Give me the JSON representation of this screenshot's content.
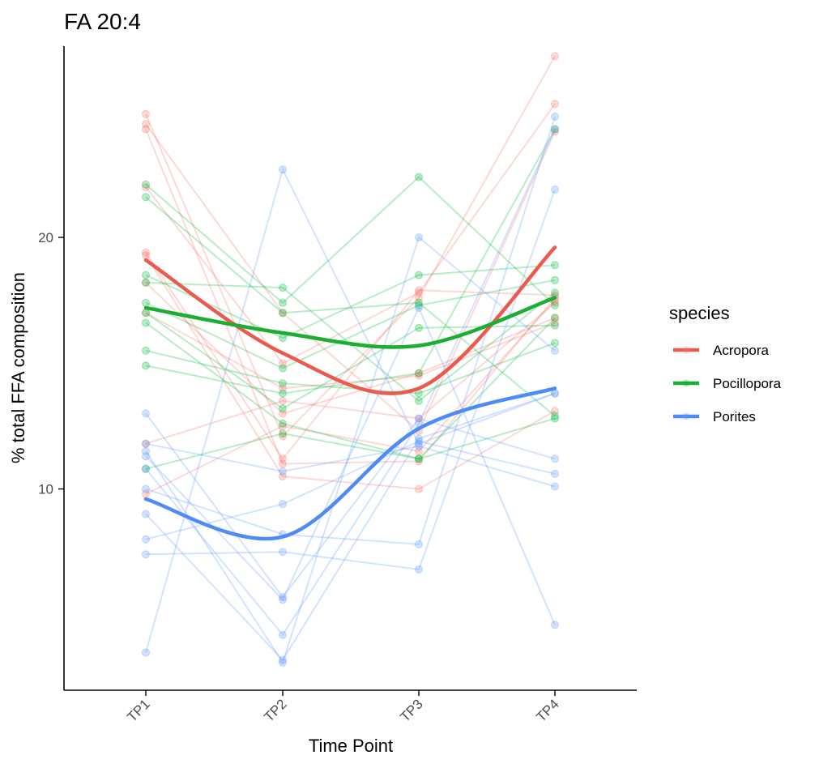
{
  "chart_data": {
    "type": "line",
    "title": "FA 20:4",
    "xlabel": "Time Point",
    "ylabel": "% total FFA composition",
    "categories": [
      "TP1",
      "TP2",
      "TP3",
      "TP4"
    ],
    "yticks": [
      10,
      20
    ],
    "ylim": [
      2.0,
      27.6
    ],
    "grid": false,
    "legend": {
      "title": "species",
      "position": "right",
      "entries": [
        "Acropora",
        "Pocillopora",
        "Porites"
      ]
    },
    "colors": {
      "Acropora": "#F8766D",
      "Pocillopora": "#00BA38",
      "Porites": "#619CFF",
      "Acropora_smooth": "#EB5A4E",
      "Pocillopora_smooth": "#1BAE33",
      "Porites_smooth": "#4F8BF7"
    },
    "individuals": [
      {
        "species": "Acropora",
        "values": [
          24.9,
          12.1,
          17.6,
          27.2
        ]
      },
      {
        "species": "Acropora",
        "values": [
          24.5,
          17.0,
          12.3,
          24.2
        ]
      },
      {
        "species": "Acropora",
        "values": [
          24.3,
          11.0,
          11.1,
          17.6
        ]
      },
      {
        "species": "Acropora",
        "values": [
          22.0,
          15.0,
          17.8,
          25.3
        ]
      },
      {
        "species": "Acropora",
        "values": [
          19.4,
          11.2,
          17.9,
          17.7
        ]
      },
      {
        "species": "Acropora",
        "values": [
          19.3,
          10.5,
          10.0,
          13.1
        ]
      },
      {
        "species": "Acropora",
        "values": [
          18.2,
          13.0,
          14.6,
          16.8
        ]
      },
      {
        "species": "Acropora",
        "values": [
          17.0,
          14.0,
          14.5,
          16.6
        ]
      },
      {
        "species": "Acropora",
        "values": [
          11.8,
          13.5,
          12.8,
          17.4
        ]
      },
      {
        "species": "Acropora",
        "values": [
          9.8,
          12.5,
          11.5,
          17.5
        ]
      },
      {
        "species": "Pocillopora",
        "values": [
          22.1,
          17.4,
          22.4,
          17.3
        ]
      },
      {
        "species": "Pocillopora",
        "values": [
          21.6,
          17.0,
          17.4,
          12.9
        ]
      },
      {
        "species": "Pocillopora",
        "values": [
          18.5,
          16.0,
          18.5,
          18.9
        ]
      },
      {
        "species": "Pocillopora",
        "values": [
          18.2,
          18.0,
          13.5,
          17.8
        ]
      },
      {
        "species": "Pocillopora",
        "values": [
          17.4,
          14.8,
          17.3,
          18.3
        ]
      },
      {
        "species": "Pocillopora",
        "values": [
          17.0,
          13.2,
          16.4,
          16.5
        ]
      },
      {
        "species": "Pocillopora",
        "values": [
          16.6,
          12.6,
          11.2,
          12.8
        ]
      },
      {
        "species": "Pocillopora",
        "values": [
          15.5,
          14.2,
          13.8,
          15.8
        ]
      },
      {
        "species": "Pocillopora",
        "values": [
          14.9,
          13.8,
          14.6,
          24.3
        ]
      },
      {
        "species": "Pocillopora",
        "values": [
          10.8,
          12.2,
          11.2,
          16.8
        ]
      },
      {
        "species": "Porites",
        "values": [
          13.0,
          5.7,
          12.8,
          11.2
        ]
      },
      {
        "species": "Porites",
        "values": [
          11.8,
          10.7,
          11.7,
          10.1
        ]
      },
      {
        "species": "Porites",
        "values": [
          11.5,
          3.1,
          20.0,
          15.5
        ]
      },
      {
        "species": "Porites",
        "values": [
          11.3,
          5.6,
          17.2,
          4.6
        ]
      },
      {
        "species": "Porites",
        "values": [
          10.0,
          8.2,
          7.8,
          24.8
        ]
      },
      {
        "species": "Porites",
        "values": [
          9.0,
          3.2,
          12.0,
          13.8
        ]
      },
      {
        "species": "Porites",
        "values": [
          8.0,
          9.4,
          11.9,
          10.6
        ]
      },
      {
        "species": "Porites",
        "values": [
          7.4,
          7.5,
          6.8,
          21.9
        ]
      },
      {
        "species": "Porites",
        "values": [
          3.5,
          22.7,
          11.8,
          13.8
        ]
      },
      {
        "species": "Porites",
        "values": [
          10.8,
          4.2,
          12.6,
          24.3
        ]
      }
    ],
    "series": [
      {
        "name": "Acropora",
        "values": [
          19.1,
          15.4,
          14.0,
          19.6
        ]
      },
      {
        "name": "Pocillopora",
        "values": [
          17.2,
          16.2,
          15.7,
          17.6
        ]
      },
      {
        "name": "Porites",
        "values": [
          9.6,
          8.1,
          12.4,
          14.0
        ]
      }
    ]
  }
}
